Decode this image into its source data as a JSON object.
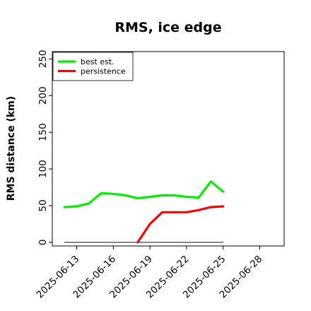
{
  "chart_data": {
    "type": "line",
    "title": "RMS, ice edge",
    "xlabel": "",
    "ylabel": "RMS distance (km)",
    "xlim": [
      "2025-06-11",
      "2025-06-30"
    ],
    "ylim": [
      -5,
      260
    ],
    "x_ticks": [
      "2025-06-13",
      "2025-06-16",
      "2025-06-19",
      "2025-06-22",
      "2025-06-25",
      "2025-06-28"
    ],
    "y_ticks": [
      0,
      50,
      100,
      150,
      200,
      250
    ],
    "grid": false,
    "legend_position": "top-left",
    "series": [
      {
        "name": "best est.",
        "color": "#00ee00",
        "x": [
          "2025-06-12",
          "2025-06-13",
          "2025-06-14",
          "2025-06-15",
          "2025-06-16",
          "2025-06-17",
          "2025-06-18",
          "2025-06-19",
          "2025-06-20",
          "2025-06-21",
          "2025-06-22",
          "2025-06-23",
          "2025-06-24",
          "2025-06-25"
        ],
        "values": [
          48,
          49,
          53,
          67,
          66,
          64,
          60,
          62,
          64,
          64,
          62,
          61,
          83,
          69
        ]
      },
      {
        "name": "persistence",
        "color": "#ff0000",
        "x": [
          "2025-06-18",
          "2025-06-19",
          "2025-06-20",
          "2025-06-21",
          "2025-06-22",
          "2025-06-23",
          "2025-06-24",
          "2025-06-25"
        ],
        "values": [
          0,
          25,
          41,
          41,
          41,
          44,
          48,
          49
        ]
      },
      {
        "color": "#555555",
        "x": [
          "2025-06-12",
          "2025-06-25"
        ],
        "values": [
          0,
          0
        ]
      }
    ]
  }
}
